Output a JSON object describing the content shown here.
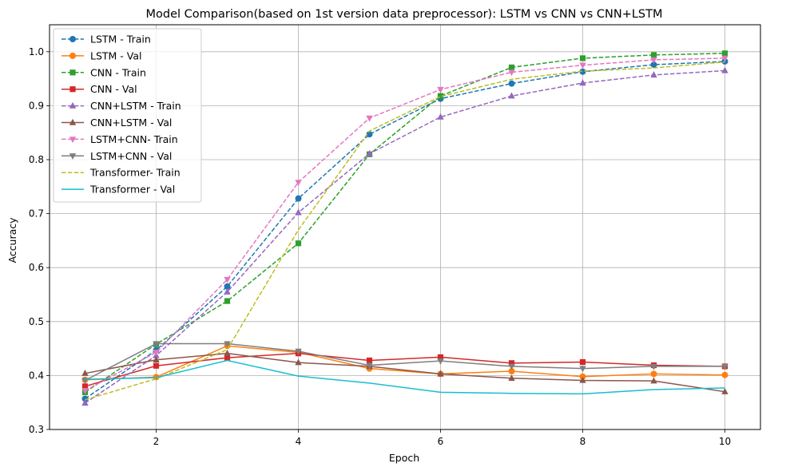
{
  "chart_data": {
    "type": "line",
    "title": "Model Comparison(based on 1st version data preprocessor): LSTM vs CNN vs CNN+LSTM",
    "xlabel": "Epoch",
    "ylabel": "Accuracy",
    "xlim": [
      0.5,
      10.5
    ],
    "ylim": [
      0.3,
      1.05
    ],
    "xticks": [
      2,
      4,
      6,
      8,
      10
    ],
    "yticks": [
      0.3,
      0.4,
      0.5,
      0.6,
      0.7,
      0.8,
      0.9,
      1.0
    ],
    "ytick_labels": [
      "0.3",
      "0.4",
      "0.5",
      "0.6",
      "0.7",
      "0.8",
      "0.9",
      "1.0"
    ],
    "grid": true,
    "legend_position": "top-left",
    "x": [
      1,
      2,
      3,
      4,
      5,
      6,
      7,
      8,
      9,
      10
    ],
    "series": [
      {
        "name": "LSTM - Train",
        "color": "#1f77b4",
        "linestyle": "dashed",
        "marker": "circle",
        "values": [
          0.357,
          0.447,
          0.565,
          0.728,
          0.847,
          0.913,
          0.941,
          0.963,
          0.976,
          0.982
        ]
      },
      {
        "name": "LSTM - Val",
        "color": "#ff7f0e",
        "linestyle": "solid",
        "marker": "circle",
        "values": [
          0.392,
          0.397,
          0.455,
          0.443,
          0.413,
          0.403,
          0.408,
          0.398,
          0.403,
          0.401
        ]
      },
      {
        "name": "CNN - Train",
        "color": "#2ca02c",
        "linestyle": "dashed",
        "marker": "square",
        "values": [
          0.369,
          0.458,
          0.538,
          0.645,
          0.81,
          0.918,
          0.971,
          0.988,
          0.994,
          0.997
        ]
      },
      {
        "name": "CNN - Val",
        "color": "#d62728",
        "linestyle": "solid",
        "marker": "square",
        "values": [
          0.38,
          0.418,
          0.433,
          0.441,
          0.428,
          0.434,
          0.423,
          0.425,
          0.419,
          0.417
        ]
      },
      {
        "name": "CNN+LSTM - Train",
        "color": "#9467bd",
        "linestyle": "dashed",
        "marker": "triangle-up",
        "values": [
          0.349,
          0.437,
          0.555,
          0.702,
          0.811,
          0.879,
          0.918,
          0.942,
          0.957,
          0.965
        ]
      },
      {
        "name": "CNN+LSTM - Val",
        "color": "#8c564b",
        "linestyle": "solid",
        "marker": "triangle-up",
        "values": [
          0.404,
          0.429,
          0.441,
          0.424,
          0.417,
          0.403,
          0.395,
          0.391,
          0.39,
          0.37
        ]
      },
      {
        "name": "LSTM+CNN- Train",
        "color": "#e377c2",
        "linestyle": "dashed",
        "marker": "triangle-down",
        "values": [
          0.372,
          0.443,
          0.578,
          0.758,
          0.877,
          0.93,
          0.962,
          0.975,
          0.985,
          0.988
        ]
      },
      {
        "name": "LSTM+CNN - Val",
        "color": "#7f7f7f",
        "linestyle": "solid",
        "marker": "triangle-down",
        "values": [
          0.391,
          0.459,
          0.459,
          0.445,
          0.419,
          0.427,
          0.417,
          0.413,
          0.417,
          0.417
        ]
      },
      {
        "name": "Transformer- Train",
        "color": "#bcbd22",
        "linestyle": "dashed",
        "marker": "none",
        "values": [
          0.355,
          0.394,
          0.448,
          0.67,
          0.853,
          0.917,
          0.949,
          0.964,
          0.97,
          0.981
        ]
      },
      {
        "name": "Transformer - Val",
        "color": "#17becf",
        "linestyle": "solid",
        "marker": "none",
        "values": [
          0.393,
          0.396,
          0.428,
          0.399,
          0.386,
          0.369,
          0.367,
          0.366,
          0.374,
          0.377
        ]
      }
    ]
  }
}
